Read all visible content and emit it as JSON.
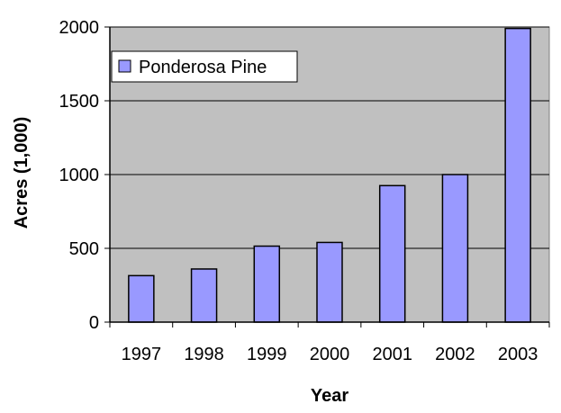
{
  "chart_data": {
    "type": "bar",
    "categories": [
      "1997",
      "1998",
      "1999",
      "2000",
      "2001",
      "2002",
      "2003"
    ],
    "series": [
      {
        "name": "Ponderosa Pine",
        "values": [
          315,
          360,
          515,
          540,
          925,
          1000,
          1990
        ]
      }
    ],
    "xlabel": "Year",
    "ylabel": "Acres (1,000)",
    "ylim": [
      0,
      2000
    ],
    "yticks": [
      "0",
      "500",
      "1000",
      "1500",
      "2000"
    ],
    "grid": true,
    "legend_position": "top-left",
    "colors": {
      "plot_background": "#c0c0c0",
      "bar_fill": "#9999ff",
      "bar_stroke": "#000000",
      "gridline": "#000000"
    }
  }
}
